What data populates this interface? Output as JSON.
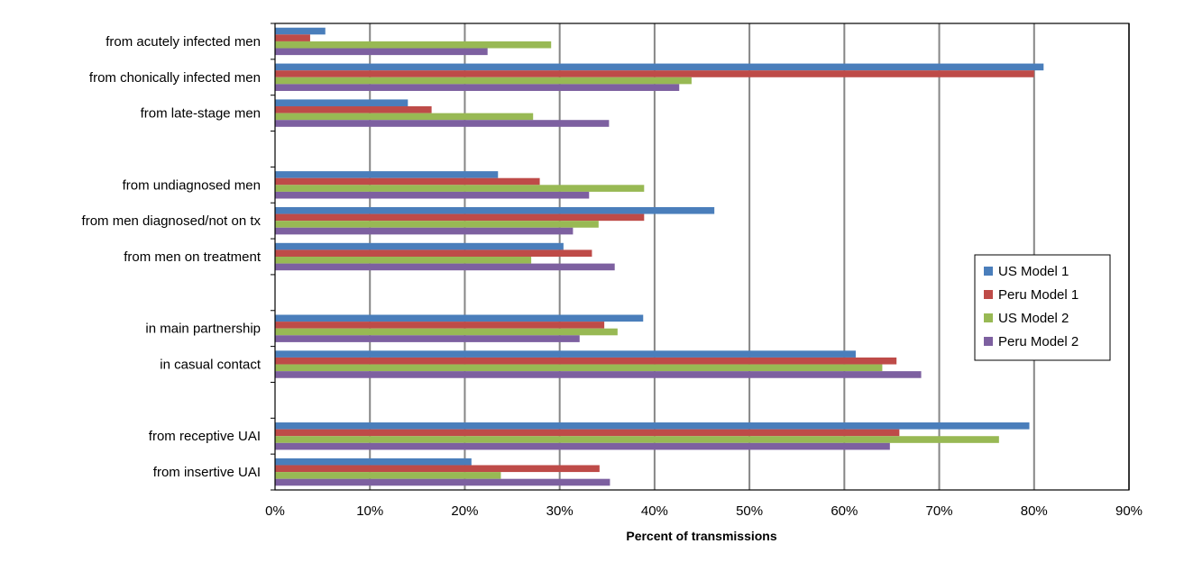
{
  "chart_data": {
    "type": "bar",
    "orientation": "horizontal",
    "title": "",
    "xlabel": "Percent of transmissions",
    "ylabel": "",
    "xlim": [
      0,
      90
    ],
    "x_tick_labels": [
      "0%",
      "10%",
      "20%",
      "30%",
      "40%",
      "50%",
      "60%",
      "70%",
      "80%",
      "90%"
    ],
    "grid": "vertical",
    "legend_position": "right",
    "categories": [
      "from acutely infected men",
      "from chonically infected men",
      "from late-stage men",
      "",
      "from undiagnosed men",
      "from men diagnosed/not on tx",
      "from men on treatment",
      "",
      "in main partnership",
      "in casual contact",
      "",
      "from receptive UAI",
      "from insertive UAI"
    ],
    "series": [
      {
        "name": "US Model 1",
        "color": "#4a7ebb",
        "values": [
          5.3,
          81.0,
          14.0,
          null,
          23.5,
          46.3,
          30.4,
          null,
          38.8,
          61.2,
          null,
          79.5,
          20.7
        ]
      },
      {
        "name": "Peru Model 1",
        "color": "#be4b48",
        "values": [
          3.7,
          80.0,
          16.5,
          null,
          27.9,
          38.9,
          33.4,
          null,
          34.7,
          65.5,
          null,
          65.8,
          34.2
        ]
      },
      {
        "name": "US Model 2",
        "color": "#98b954",
        "values": [
          29.1,
          43.9,
          27.2,
          null,
          38.9,
          34.1,
          27.0,
          null,
          36.1,
          64.0,
          null,
          76.3,
          23.8
        ]
      },
      {
        "name": "Peru Model 2",
        "color": "#7d60a0",
        "values": [
          22.4,
          42.6,
          35.2,
          null,
          33.1,
          31.4,
          35.8,
          null,
          32.1,
          68.1,
          null,
          64.8,
          35.3
        ]
      }
    ]
  }
}
